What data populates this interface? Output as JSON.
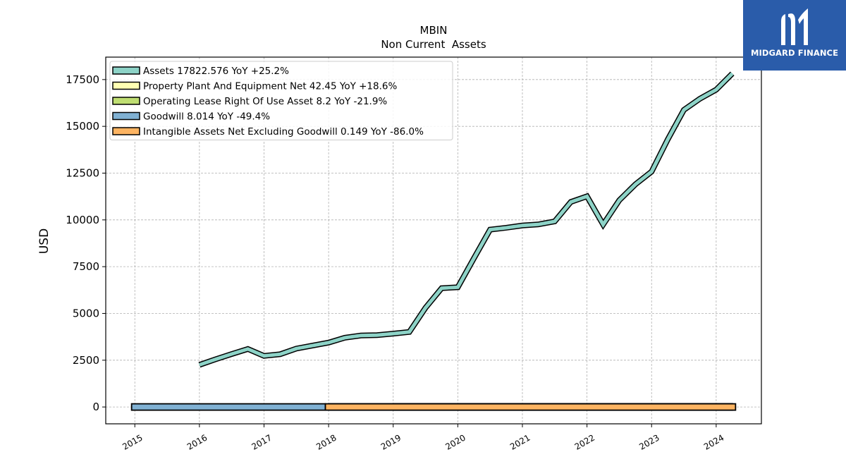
{
  "chart_data": {
    "type": "line",
    "title": "MBIN",
    "subtitle": "Non Current  Assets",
    "ylabel": "USD",
    "xlabel": "",
    "xlim": [
      2014.55,
      2024.7
    ],
    "ylim": [
      -900,
      18700
    ],
    "yticks": [
      0,
      2500,
      5000,
      7500,
      10000,
      12500,
      15000,
      17500
    ],
    "xticks": [
      2015,
      2016,
      2017,
      2018,
      2019,
      2020,
      2021,
      2022,
      2023,
      2024
    ],
    "grid": true,
    "legend_position": "top-left",
    "series": [
      {
        "name": "Assets",
        "legend": "Assets  17822.576 YoY +25.2%",
        "color": "#8dd3c7",
        "x": [
          2016.0,
          2016.25,
          2016.5,
          2016.75,
          2017.0,
          2017.25,
          2017.5,
          2017.75,
          2018.0,
          2018.25,
          2018.5,
          2018.75,
          2019.0,
          2019.25,
          2019.5,
          2019.75,
          2020.0,
          2020.25,
          2020.5,
          2020.75,
          2021.0,
          2021.25,
          2021.5,
          2021.75,
          2022.0,
          2022.25,
          2022.5,
          2022.75,
          2023.0,
          2023.25,
          2023.5,
          2023.75,
          2024.0,
          2024.25
        ],
        "y": [
          2250,
          2550,
          2830,
          3100,
          2730,
          2820,
          3120,
          3280,
          3440,
          3700,
          3820,
          3840,
          3920,
          4010,
          5300,
          6350,
          6400,
          7950,
          9480,
          9580,
          9700,
          9760,
          9920,
          10960,
          11260,
          9750,
          11050,
          11900,
          12580,
          14300,
          15880,
          16480,
          16960,
          17823
        ]
      },
      {
        "name": "Property Plant And Equipment Net",
        "legend": "Property Plant And Equipment Net  42.45 YoY +18.6%",
        "color": "#ffffb3",
        "x": [
          2018.0,
          2018.5,
          2019.0,
          2019.5,
          2020.0,
          2020.5,
          2021.0,
          2021.5,
          2022.0,
          2022.5,
          2023.0,
          2023.5,
          2024.0,
          2024.25
        ],
        "y": [
          20,
          22,
          24,
          27,
          30,
          31,
          32,
          33,
          34,
          35,
          36,
          38,
          41,
          42.45
        ]
      },
      {
        "name": "Operating Lease Right Of Use Asset",
        "legend": "Operating Lease Right Of Use Asset  8.2 YoY -21.9%",
        "color": "#bfde72",
        "x": [
          2019.0,
          2019.5,
          2020.0,
          2020.5,
          2021.0,
          2021.5,
          2022.0,
          2022.5,
          2023.0,
          2023.5,
          2024.0,
          2024.25
        ],
        "y": [
          14,
          13.5,
          13,
          12.5,
          12,
          11.5,
          11,
          10.5,
          10,
          9.5,
          8.8,
          8.2
        ]
      },
      {
        "name": "Goodwill",
        "legend": "Goodwill  8.014 YoY -49.4%",
        "color": "#80b1d3",
        "x": [
          2014.95,
          2015.5,
          2016.0,
          2016.5,
          2017.0,
          2017.5,
          2017.95
        ],
        "y": [
          8,
          8,
          8,
          8,
          8,
          8,
          8.014
        ]
      },
      {
        "name": "Intangible Assets Net Excluding Goodwill",
        "legend": "Intangible Assets Net Excluding Goodwill  0.149 YoY -86.0%",
        "color": "#fdb462",
        "x": [
          2017.95,
          2018.5,
          2019.0,
          2019.5,
          2020.0,
          2020.5,
          2021.0,
          2021.5,
          2022.0,
          2022.5,
          2023.0,
          2023.5,
          2024.0,
          2024.3
        ],
        "y": [
          1.2,
          1.1,
          1.0,
          0.9,
          0.8,
          0.7,
          0.6,
          0.5,
          0.45,
          0.4,
          0.3,
          0.2,
          0.16,
          0.149
        ]
      }
    ]
  },
  "logo": {
    "text": "MIDGARD FINANCE",
    "background": "#2a5caa"
  }
}
